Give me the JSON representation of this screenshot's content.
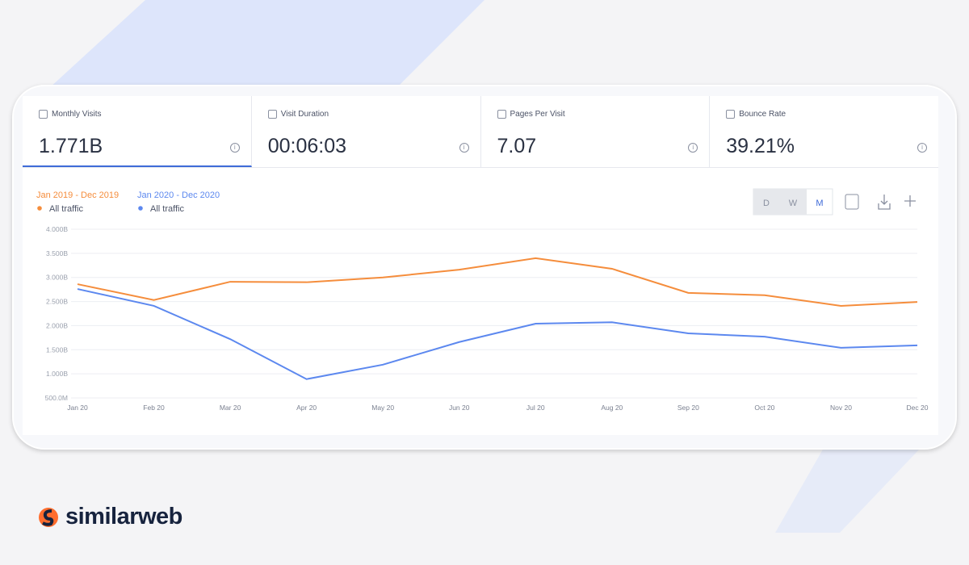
{
  "metrics": [
    {
      "label": "Monthly Visits",
      "value": "1.771B"
    },
    {
      "label": "Visit Duration",
      "value": "00:06:03"
    },
    {
      "label": "Pages Per Visit",
      "value": "7.07"
    },
    {
      "label": "Bounce Rate",
      "value": "39.21%"
    }
  ],
  "granularity": [
    "D",
    "W",
    "M"
  ],
  "brand": "similarweb",
  "chart_data": {
    "type": "line",
    "categories": [
      "Jan 20",
      "Feb 20",
      "Mar 20",
      "Apr 20",
      "May 20",
      "Jun 20",
      "Jul 20",
      "Aug 20",
      "Sep 20",
      "Oct 20",
      "Nov 20",
      "Dec 20"
    ],
    "series": [
      {
        "period": "Jan 2019 - Dec 2019",
        "name": "All traffic",
        "color": "#f58d3c",
        "values": [
          2.86,
          2.53,
          2.91,
          2.9,
          3.0,
          3.16,
          3.4,
          3.18,
          2.68,
          2.63,
          2.41,
          2.49
        ]
      },
      {
        "period": "Jan 2020 - Dec 2020",
        "name": "All traffic",
        "color": "#5c88ef",
        "values": [
          2.76,
          2.41,
          1.72,
          0.89,
          1.19,
          1.66,
          2.04,
          2.07,
          1.84,
          1.77,
          1.54,
          1.59
        ]
      }
    ],
    "ylim": [
      0.5,
      4.0
    ],
    "yticks": [
      {
        "value": 0.5,
        "label": "500.0M"
      },
      {
        "value": 1.0,
        "label": "1.000B"
      },
      {
        "value": 1.5,
        "label": "1.500B"
      },
      {
        "value": 2.0,
        "label": "2.000B"
      },
      {
        "value": 2.5,
        "label": "2.500B"
      },
      {
        "value": 3.0,
        "label": "3.000B"
      },
      {
        "value": 3.5,
        "label": "3.500B"
      },
      {
        "value": 4.0,
        "label": "4.000B"
      }
    ],
    "grid": true
  }
}
